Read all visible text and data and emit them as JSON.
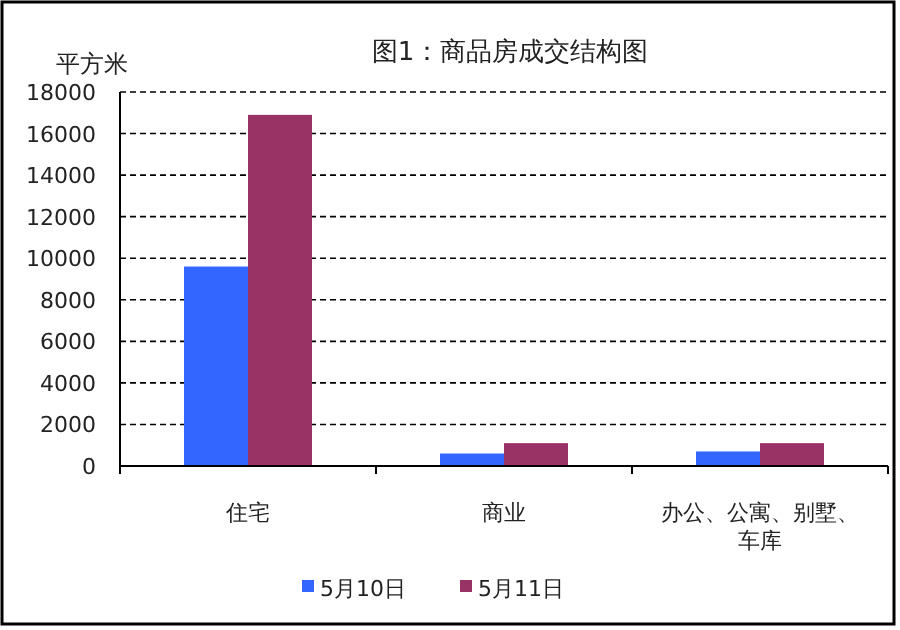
{
  "chart_data": {
    "type": "bar",
    "title": "图1：商品房成交结构图",
    "ylabel": "平方米",
    "categories": [
      "住宅",
      "商业",
      "办公、公寓、别墅、车库"
    ],
    "series": [
      {
        "name": "5月10日",
        "color": "#3366ff",
        "values": [
          9600,
          600,
          700
        ]
      },
      {
        "name": "5月11日",
        "color": "#993366",
        "values": [
          16900,
          1100,
          1100
        ]
      }
    ],
    "ylim": [
      0,
      18000
    ],
    "yticks": [
      0,
      2000,
      4000,
      6000,
      8000,
      10000,
      12000,
      14000,
      16000,
      18000
    ],
    "grid": "y",
    "line_style": "dashed",
    "legend": "bottom"
  }
}
